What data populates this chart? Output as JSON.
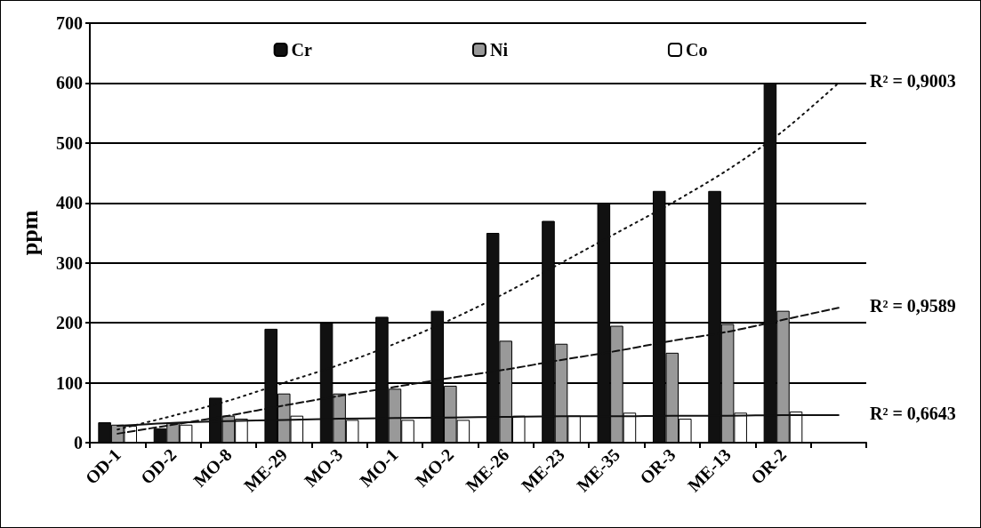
{
  "chart_data": {
    "type": "bar",
    "ylabel": "ppm",
    "categories": [
      "OD-1",
      "OD-2",
      "MO-8",
      "ME-29",
      "MO-3",
      "MO-1",
      "MO-2",
      "ME-26",
      "ME-23",
      "ME-35",
      "OR-3",
      "ME-13",
      "OR-2",
      null
    ],
    "series": [
      {
        "name": "Cr",
        "color": "#111111",
        "values": [
          34,
          24,
          75,
          190,
          200,
          210,
          220,
          350,
          370,
          400,
          420,
          420,
          600,
          null
        ]
      },
      {
        "name": "Ni",
        "color": "#999999",
        "values": [
          30,
          33,
          45,
          82,
          82,
          90,
          95,
          170,
          165,
          195,
          150,
          198,
          220,
          null
        ]
      },
      {
        "name": "Co",
        "color": "#ffffff",
        "values": [
          28,
          30,
          40,
          45,
          38,
          38,
          38,
          45,
          45,
          50,
          40,
          50,
          52,
          null
        ]
      },
      {
        "type": "line",
        "color": "#111111",
        "line_style": "dotted",
        "values": [
          22,
          45,
          70,
          100,
          130,
          165,
          205,
          250,
          300,
          350,
          400,
          455,
          520,
          600
        ]
      },
      {
        "type": "line",
        "color": "#111111",
        "line_style": "dashed",
        "values": [
          15,
          30,
          45,
          62,
          78,
          93,
          108,
          122,
          138,
          153,
          170,
          185,
          205,
          225
        ]
      },
      {
        "type": "line",
        "color": "#111111",
        "line_style": "solid",
        "values": [
          28,
          33,
          36,
          38,
          40,
          41,
          42,
          43,
          44,
          44,
          45,
          45,
          46,
          46
        ]
      }
    ],
    "ylim": [
      0,
      700
    ],
    "yticks": [
      0,
      100,
      200,
      300,
      400,
      500,
      600,
      700
    ],
    "grid": "y",
    "legend": "top",
    "annotations": [
      "R² = 0,9003",
      "R² = 0,9589",
      "R² = 0,6643"
    ]
  }
}
